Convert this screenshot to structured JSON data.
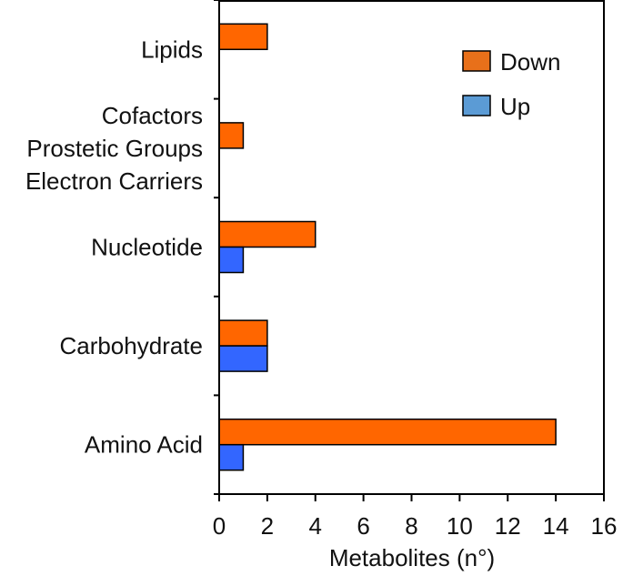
{
  "chart_data": {
    "type": "bar",
    "orientation": "horizontal",
    "categories": [
      [
        "Amino Acid"
      ],
      [
        "Carbohydrate"
      ],
      [
        "Nucleotide"
      ],
      [
        "Cofactors",
        "Prostetic Groups",
        "Electron Carriers"
      ],
      [
        "Lipids"
      ]
    ],
    "series": [
      {
        "name": "Down",
        "color": "#FF6600",
        "values": [
          14,
          2,
          4,
          1,
          2
        ]
      },
      {
        "name": "Up",
        "color": "#3366FF",
        "values": [
          1,
          2,
          1,
          0,
          0
        ]
      }
    ],
    "xlabel": "Metabolites (n°)",
    "xlim": [
      0,
      16
    ],
    "xticks": [
      0,
      2,
      4,
      6,
      8,
      10,
      12,
      14,
      16
    ],
    "legend": {
      "position": "top-right",
      "entries": [
        {
          "label": "Down",
          "color": "#E8701A"
        },
        {
          "label": "Up",
          "color": "#5B9BD5"
        }
      ]
    },
    "grid": false
  }
}
